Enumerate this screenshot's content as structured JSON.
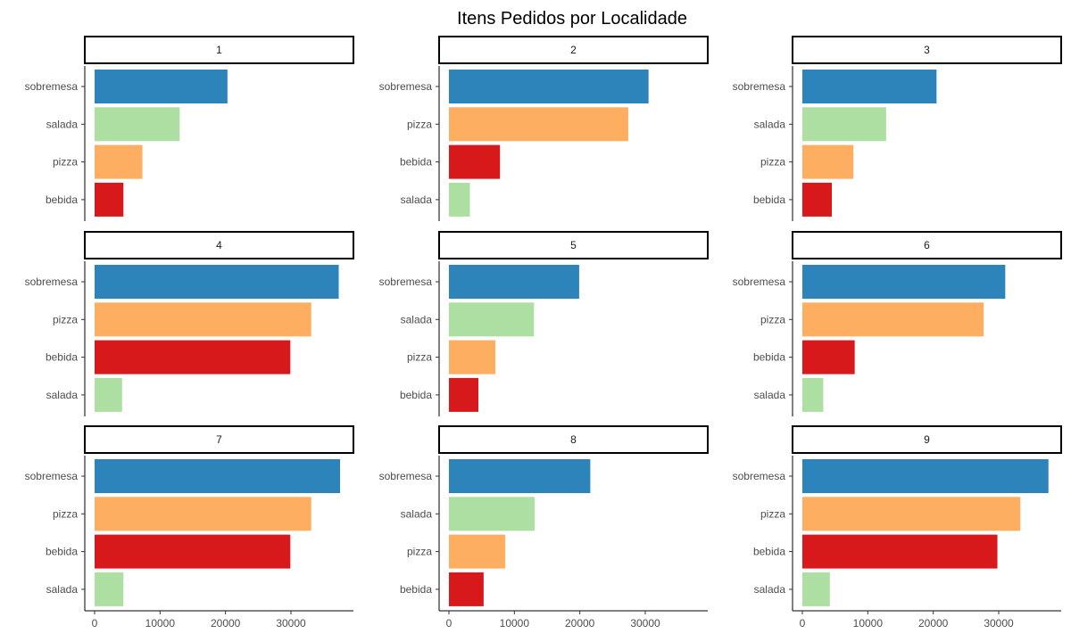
{
  "chart_data": {
    "type": "bar",
    "orientation": "horizontal",
    "title": "Itens Pedidos por Localidade",
    "xlabel": "",
    "ylabel": "",
    "xlim": [
      0,
      39000
    ],
    "x_ticks": [
      0,
      10000,
      20000,
      30000
    ],
    "x_tick_labels": [
      "0",
      "10000",
      "20000",
      "30000"
    ],
    "grid": false,
    "legend": "none",
    "colors": {
      "sobremesa": "#2c84bb",
      "pizza": "#fdae61",
      "salada": "#addfa2",
      "bebida": "#d7191c"
    },
    "panels": [
      {
        "label": "1",
        "categories": [
          "sobremesa",
          "salada",
          "pizza",
          "bebida"
        ],
        "values": [
          20300,
          13000,
          7300,
          4400
        ]
      },
      {
        "label": "2",
        "categories": [
          "sobremesa",
          "pizza",
          "bebida",
          "salada"
        ],
        "values": [
          30500,
          27400,
          7800,
          3200
        ]
      },
      {
        "label": "3",
        "categories": [
          "sobremesa",
          "salada",
          "pizza",
          "bebida"
        ],
        "values": [
          20500,
          12800,
          7800,
          4500
        ]
      },
      {
        "label": "4",
        "categories": [
          "sobremesa",
          "pizza",
          "bebida",
          "salada"
        ],
        "values": [
          37300,
          33100,
          29900,
          4200
        ]
      },
      {
        "label": "5",
        "categories": [
          "sobremesa",
          "salada",
          "pizza",
          "bebida"
        ],
        "values": [
          19900,
          13000,
          7100,
          4500
        ]
      },
      {
        "label": "6",
        "categories": [
          "sobremesa",
          "pizza",
          "bebida",
          "salada"
        ],
        "values": [
          31000,
          27700,
          8000,
          3200
        ]
      },
      {
        "label": "7",
        "categories": [
          "sobremesa",
          "pizza",
          "bebida",
          "salada"
        ],
        "values": [
          37500,
          33100,
          29900,
          4400
        ]
      },
      {
        "label": "8",
        "categories": [
          "sobremesa",
          "salada",
          "pizza",
          "bebida"
        ],
        "values": [
          21600,
          13100,
          8600,
          5300
        ]
      },
      {
        "label": "9",
        "categories": [
          "sobremesa",
          "pizza",
          "bebida",
          "salada"
        ],
        "values": [
          37600,
          33300,
          29800,
          4200
        ]
      }
    ]
  }
}
